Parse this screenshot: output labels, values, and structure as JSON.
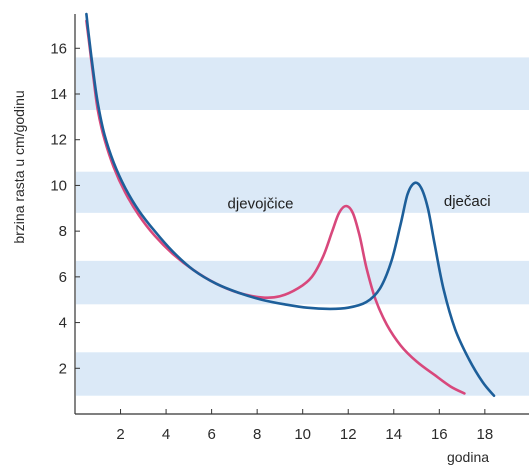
{
  "chart_data": {
    "type": "line",
    "title": "",
    "xlabel": "godina",
    "ylabel": "brzina rasta u cm/godinu",
    "xlim": [
      0,
      19.5
    ],
    "ylim": [
      0,
      17.5
    ],
    "x_ticks": [
      2,
      4,
      6,
      8,
      10,
      12,
      14,
      16,
      18
    ],
    "y_ticks": [
      2,
      4,
      6,
      8,
      10,
      12,
      14,
      16
    ],
    "bands": [
      [
        0.8,
        2.7
      ],
      [
        4.8,
        6.7
      ],
      [
        8.8,
        10.6
      ],
      [
        13.3,
        15.6
      ]
    ],
    "band_color": "#dbe9f7",
    "series": [
      {
        "name": "djevojčice",
        "color": "#d8487c",
        "points": [
          [
            0.5,
            17.2
          ],
          [
            0.6,
            16.4
          ],
          [
            0.8,
            14.8
          ],
          [
            1.0,
            13.3
          ],
          [
            1.3,
            12.0
          ],
          [
            1.7,
            10.8
          ],
          [
            2.2,
            9.7
          ],
          [
            2.8,
            8.7
          ],
          [
            3.5,
            7.8
          ],
          [
            4.3,
            7.0
          ],
          [
            5.2,
            6.3
          ],
          [
            6.2,
            5.7
          ],
          [
            7.2,
            5.3
          ],
          [
            8.2,
            5.1
          ],
          [
            9.0,
            5.15
          ],
          [
            9.8,
            5.5
          ],
          [
            10.4,
            6.0
          ],
          [
            10.9,
            6.9
          ],
          [
            11.3,
            8.0
          ],
          [
            11.6,
            8.8
          ],
          [
            11.9,
            9.1
          ],
          [
            12.2,
            8.8
          ],
          [
            12.5,
            7.8
          ],
          [
            12.8,
            6.4
          ],
          [
            13.2,
            5.0
          ],
          [
            13.7,
            3.9
          ],
          [
            14.3,
            3.0
          ],
          [
            15.0,
            2.3
          ],
          [
            15.8,
            1.7
          ],
          [
            16.5,
            1.2
          ],
          [
            17.1,
            0.9
          ]
        ]
      },
      {
        "name": "dječaci",
        "color": "#1d5f9a",
        "points": [
          [
            0.5,
            17.5
          ],
          [
            0.6,
            16.6
          ],
          [
            0.8,
            15.0
          ],
          [
            1.0,
            13.6
          ],
          [
            1.3,
            12.2
          ],
          [
            1.7,
            11.0
          ],
          [
            2.2,
            9.9
          ],
          [
            2.8,
            8.9
          ],
          [
            3.5,
            8.0
          ],
          [
            4.3,
            7.1
          ],
          [
            5.2,
            6.3
          ],
          [
            6.2,
            5.7
          ],
          [
            7.2,
            5.3
          ],
          [
            8.2,
            5.0
          ],
          [
            9.2,
            4.8
          ],
          [
            10.2,
            4.65
          ],
          [
            11.2,
            4.6
          ],
          [
            12.0,
            4.65
          ],
          [
            12.8,
            4.9
          ],
          [
            13.4,
            5.5
          ],
          [
            13.9,
            6.7
          ],
          [
            14.3,
            8.3
          ],
          [
            14.6,
            9.6
          ],
          [
            14.9,
            10.1
          ],
          [
            15.2,
            9.9
          ],
          [
            15.5,
            9.0
          ],
          [
            15.8,
            7.4
          ],
          [
            16.2,
            5.4
          ],
          [
            16.7,
            3.7
          ],
          [
            17.3,
            2.4
          ],
          [
            17.9,
            1.4
          ],
          [
            18.4,
            0.8
          ]
        ]
      }
    ],
    "annotations": [
      {
        "text": "djevojčice",
        "x": 6.7,
        "y": 9.0
      },
      {
        "text": "dječaci",
        "x": 16.2,
        "y": 9.1
      }
    ]
  }
}
